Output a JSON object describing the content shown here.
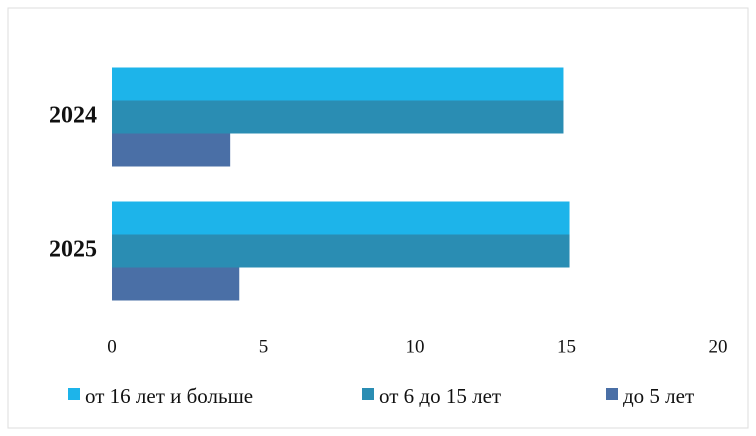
{
  "chart_data": {
    "type": "hbar",
    "categories": [
      "2024",
      "2025"
    ],
    "series": [
      {
        "name": "от 16 лет и больше",
        "color": "#1db4ea",
        "values": [
          14.9,
          15.1
        ]
      },
      {
        "name": "от 6 до 15 лет",
        "color": "#2a8db3",
        "values": [
          14.9,
          15.1
        ]
      },
      {
        "name": "до 5 лет",
        "color": "#4a6fa6",
        "values": [
          3.9,
          4.2
        ]
      }
    ],
    "xlim": [
      0,
      20
    ],
    "xticks": [
      0,
      5,
      10,
      15,
      20
    ],
    "grid": false,
    "legend": "bottom"
  }
}
